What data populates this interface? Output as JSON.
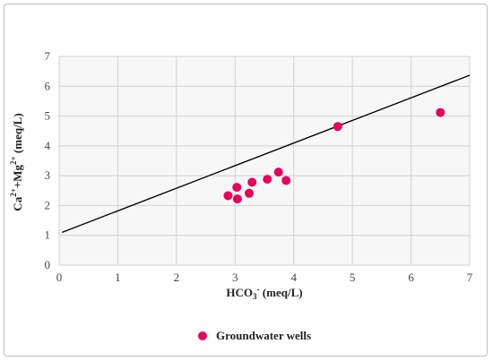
{
  "chart_data": {
    "type": "scatter",
    "title": "",
    "xlabel": "HCO3- (meq/L)",
    "ylabel": "Ca2++Mg2+ (meq/L)",
    "xlim": [
      0,
      7
    ],
    "ylim": [
      0,
      7
    ],
    "xticks": [
      0,
      1,
      2,
      3,
      4,
      5,
      6,
      7
    ],
    "yticks": [
      0,
      1,
      2,
      3,
      4,
      5,
      6,
      7
    ],
    "grid": true,
    "legend_position": "bottom",
    "series": [
      {
        "name": "Groundwater wells",
        "color": "#e6005c",
        "points": [
          {
            "x": 2.88,
            "y": 2.33
          },
          {
            "x": 3.03,
            "y": 2.61
          },
          {
            "x": 3.04,
            "y": 2.22
          },
          {
            "x": 3.24,
            "y": 2.41
          },
          {
            "x": 3.29,
            "y": 2.78
          },
          {
            "x": 3.55,
            "y": 2.88
          },
          {
            "x": 3.74,
            "y": 3.12
          },
          {
            "x": 3.87,
            "y": 2.84
          },
          {
            "x": 4.75,
            "y": 4.65
          },
          {
            "x": 6.5,
            "y": 5.12
          }
        ]
      }
    ],
    "reference_line": {
      "color": "#000000",
      "from": {
        "x": 0.05,
        "y": 1.1
      },
      "to": {
        "x": 7.0,
        "y": 6.37
      }
    }
  }
}
